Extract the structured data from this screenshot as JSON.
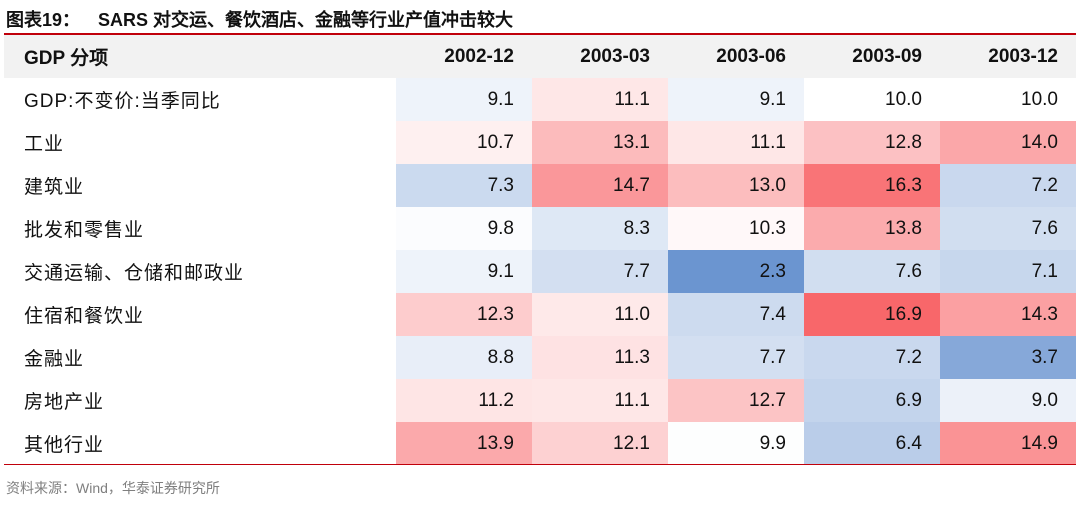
{
  "figure": {
    "number": "图表19：",
    "title": "SARS 对交运、餐饮酒店、金融等行业产值冲击较大",
    "source": "资料来源：Wind，华泰证券研究所"
  },
  "chart_data": {
    "type": "heatmap",
    "header_label": "GDP 分项",
    "columns": [
      "2002-12",
      "2003-03",
      "2003-06",
      "2003-09",
      "2003-12"
    ],
    "rows": [
      {
        "label": "GDP:不变价:当季同比",
        "values": [
          "9.1",
          "11.1",
          "9.1",
          "10.0",
          "10.0"
        ]
      },
      {
        "label": "工业",
        "values": [
          "10.7",
          "13.1",
          "11.1",
          "12.8",
          "14.0"
        ]
      },
      {
        "label": "建筑业",
        "values": [
          "7.3",
          "14.7",
          "13.0",
          "16.3",
          "7.2"
        ]
      },
      {
        "label": "批发和零售业",
        "values": [
          "9.8",
          "8.3",
          "10.3",
          "13.8",
          "7.6"
        ]
      },
      {
        "label": "交通运输、仓储和邮政业",
        "values": [
          "9.1",
          "7.7",
          "2.3",
          "7.6",
          "7.1"
        ]
      },
      {
        "label": "住宿和餐饮业",
        "values": [
          "12.3",
          "11.0",
          "7.4",
          "16.9",
          "14.3"
        ]
      },
      {
        "label": "金融业",
        "values": [
          "8.8",
          "11.3",
          "7.7",
          "7.2",
          "3.7"
        ]
      },
      {
        "label": "房地产业",
        "values": [
          "11.2",
          "11.1",
          "12.7",
          "6.9",
          "9.0"
        ]
      },
      {
        "label": "其他行业",
        "values": [
          "13.9",
          "12.1",
          "9.9",
          "6.4",
          "14.9"
        ]
      }
    ],
    "color_scale": {
      "low": "#6b95d0",
      "mid": "#ffffff",
      "high": "#f8676a",
      "min": 2.3,
      "mid_value": 10.0,
      "max": 16.9
    }
  }
}
